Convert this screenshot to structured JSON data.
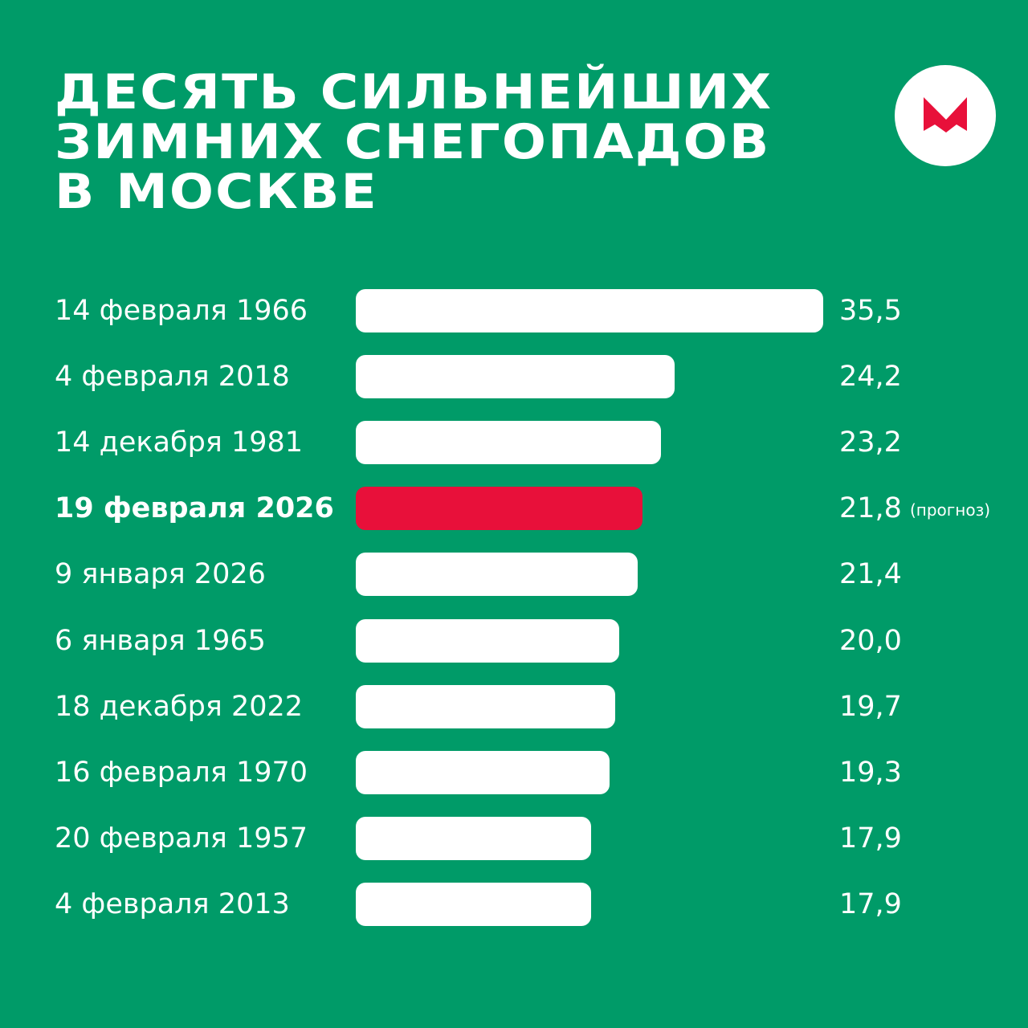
{
  "title_lines": [
    "ДЕСЯТЬ СИЛЬНЕЙШИХ",
    "ЗИМНИХ СНЕГОПАДОВ",
    "В МОСКВЕ"
  ],
  "logo": {
    "icon": "m-letter-logo",
    "color": "#e8103a"
  },
  "colors": {
    "background": "#009b68",
    "bar": "#ffffff",
    "highlight_bar": "#e8103a",
    "text": "#ffffff"
  },
  "chart_data": {
    "type": "bar",
    "orientation": "horizontal",
    "title": "ДЕСЯТЬ СИЛЬНЕЙШИХ ЗИМНИХ СНЕГОПАДОВ В МОСКВЕ",
    "categories": [
      "14 февраля 1966",
      "4 февраля 2018",
      "14 декабря 1981",
      "19 февраля 2026",
      "9 января 2026",
      "6 января 1965",
      "18 декабря 2022",
      "16 февраля 1970",
      "20 февраля 1957",
      "4 февраля 2013"
    ],
    "values": [
      35.5,
      24.2,
      23.2,
      21.8,
      21.4,
      20.0,
      19.7,
      19.3,
      17.9,
      17.9
    ],
    "value_labels": [
      "35,5",
      "24,2",
      "23,2",
      "21,8",
      "21,4",
      "20,0",
      "19,7",
      "19,3",
      "17,9",
      "17,9"
    ],
    "notes": [
      "",
      "",
      "",
      "(прогноз)",
      "",
      "",
      "",
      "",
      "",
      ""
    ],
    "highlight_index": 3,
    "xlim": [
      0,
      35.5
    ],
    "grid": false,
    "legend": "none"
  }
}
